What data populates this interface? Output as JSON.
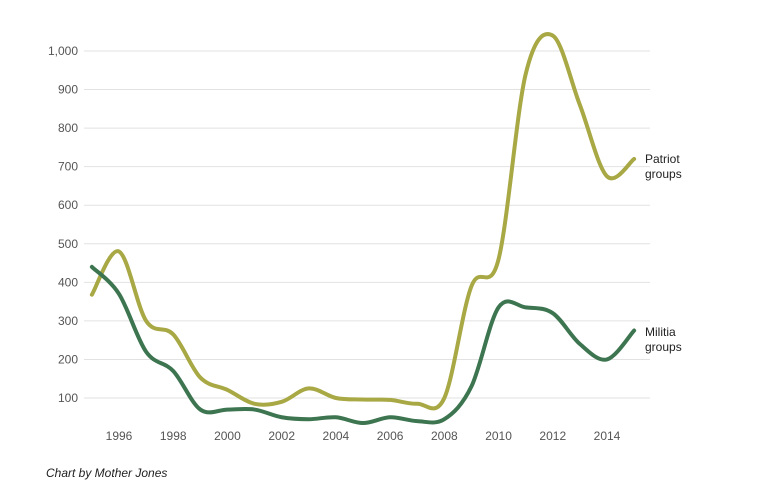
{
  "chart_data": {
    "type": "line",
    "x": [
      1995,
      1996,
      1997,
      1998,
      1999,
      2000,
      2001,
      2002,
      2003,
      2004,
      2005,
      2006,
      2007,
      2008,
      2009,
      2010,
      2011,
      2012,
      2013,
      2014,
      2015
    ],
    "series": [
      {
        "name": "Patriot groups",
        "label_lines": [
          "Patriot",
          "groups"
        ],
        "color": "#a8a845",
        "values": [
          368,
          480,
          300,
          265,
          153,
          121,
          85,
          90,
          125,
          100,
          96,
          95,
          85,
          100,
          390,
          460,
          940,
          1040,
          860,
          675,
          720
        ]
      },
      {
        "name": "Militia groups",
        "label_lines": [
          "Militia",
          "groups"
        ],
        "color": "#3d7550",
        "values": [
          440,
          370,
          220,
          170,
          70,
          70,
          70,
          50,
          45,
          50,
          35,
          50,
          40,
          45,
          130,
          335,
          335,
          320,
          240,
          200,
          275
        ]
      }
    ],
    "y_ticks": [
      "100",
      "200",
      "300",
      "400",
      "500",
      "600",
      "700",
      "800",
      "900",
      "1,000"
    ],
    "x_ticks": [
      "1996",
      "1998",
      "2000",
      "2002",
      "2004",
      "2006",
      "2008",
      "2010",
      "2012",
      "2014"
    ],
    "ylim": [
      30,
      1100
    ],
    "grid": true,
    "title": "",
    "xlabel": "",
    "ylabel": ""
  },
  "credit": "Chart by Mother Jones"
}
